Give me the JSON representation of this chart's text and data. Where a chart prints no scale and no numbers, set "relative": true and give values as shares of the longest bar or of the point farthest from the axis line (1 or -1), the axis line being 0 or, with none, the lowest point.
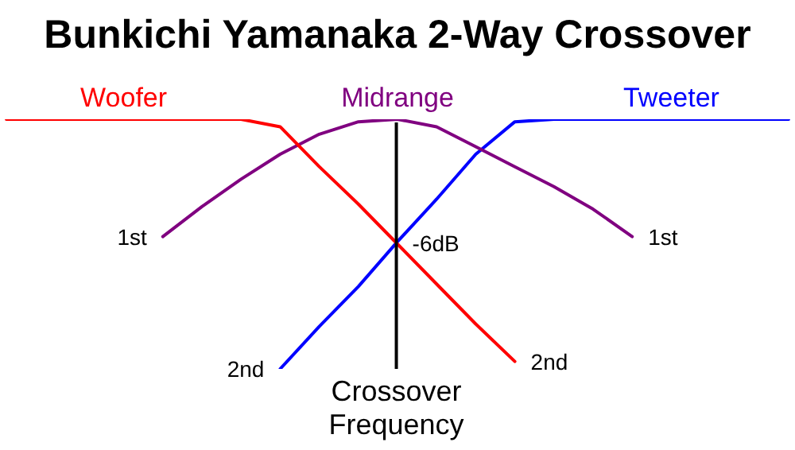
{
  "chart_data": {
    "type": "line",
    "title": "Bunkichi Yamanaka 2-Way Crossover",
    "relative": true,
    "tick_labels": false,
    "grid": false,
    "legend": false,
    "marker": "none",
    "line_style": "solid",
    "categories": [
      null,
      null,
      null,
      null,
      null,
      null,
      null,
      null,
      null,
      null,
      null,
      null,
      null,
      null,
      null,
      null,
      null,
      null,
      null,
      null,
      null
    ],
    "series": [
      {
        "name": "Woofer",
        "color": "#ff0000",
        "values": [
          1,
          1,
          1,
          1,
          1,
          1,
          1,
          0.97,
          0.81,
          0.66,
          0.5,
          0.34,
          0.18,
          0.03,
          null,
          null,
          null,
          null,
          null,
          null,
          null
        ]
      },
      {
        "name": "Midrange",
        "color": "#800080",
        "values": [
          null,
          null,
          null,
          null,
          0.53,
          0.65,
          0.76,
          0.86,
          0.94,
          0.99,
          1,
          0.97,
          0.89,
          0.81,
          0.73,
          0.64,
          0.53,
          null,
          null,
          null,
          null
        ]
      },
      {
        "name": "Tweeter",
        "color": "#0000ff",
        "values": [
          null,
          null,
          null,
          null,
          null,
          null,
          null,
          0,
          0.17,
          0.33,
          0.51,
          0.68,
          0.86,
          0.99,
          1,
          1,
          1,
          1,
          1,
          1,
          1
        ]
      }
    ],
    "annotations": [
      "1st",
      "2nd",
      "2nd",
      "1st",
      "-6dB",
      "Crossover Frequency"
    ]
  }
}
